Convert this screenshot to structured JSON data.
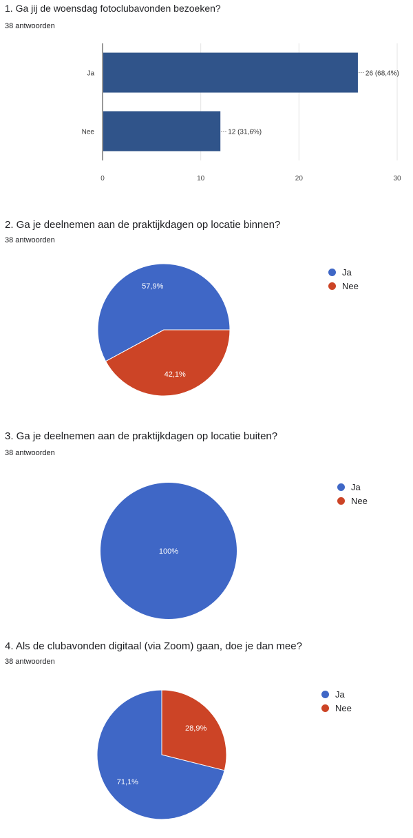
{
  "colors": {
    "ja": "#3f67c6",
    "nee": "#cc4426",
    "bar": "#30548a"
  },
  "q1": {
    "title": "1.  Ga jij de woensdag fotoclubavonden bezoeken?",
    "subtitle": "38 antwoorden"
  },
  "q2": {
    "title": "2. Ga je deelnemen aan de praktijkdagen op locatie binnen?",
    "subtitle": "38 antwoorden"
  },
  "q3": {
    "title": "3.  Ga je deelnemen aan de praktijkdagen op locatie buiten?",
    "subtitle": "38 antwoorden"
  },
  "q4": {
    "title": "4.  Als de clubavonden digitaal (via Zoom) gaan, doe je dan mee?",
    "subtitle": "38 antwoorden"
  },
  "chart_data": [
    {
      "type": "bar",
      "orientation": "horizontal",
      "title": "1.  Ga jij de woensdag fotoclubavonden bezoeken?",
      "subtitle": "38 antwoorden",
      "categories": [
        "Ja",
        "Nee"
      ],
      "values": [
        26,
        12
      ],
      "data_labels": [
        "26 (68,4%)",
        "12 (31,6%)"
      ],
      "xlim": [
        0,
        30
      ],
      "xticks": [
        0,
        10,
        20,
        30
      ],
      "grid": true
    },
    {
      "type": "pie",
      "title": "2. Ga je deelnemen aan de praktijkdagen op locatie binnen?",
      "subtitle": "38 antwoorden",
      "labels": [
        "Ja",
        "Nee"
      ],
      "values": [
        57.9,
        42.1
      ],
      "data_labels": [
        "57,9%",
        "42,1%"
      ],
      "legend": "right"
    },
    {
      "type": "pie",
      "title": "3.  Ga je deelnemen aan de praktijkdagen op locatie buiten?",
      "subtitle": "38 antwoorden",
      "labels": [
        "Ja",
        "Nee"
      ],
      "values": [
        100,
        0
      ],
      "data_labels": [
        "100%",
        ""
      ],
      "legend": "right"
    },
    {
      "type": "pie",
      "title": "4.  Als de clubavonden digitaal (via Zoom) gaan, doe je dan mee?",
      "subtitle": "38 antwoorden",
      "labels": [
        "Ja",
        "Nee"
      ],
      "values": [
        71.1,
        28.9
      ],
      "data_labels": [
        "71,1%",
        "28,9%"
      ],
      "legend": "right"
    }
  ]
}
